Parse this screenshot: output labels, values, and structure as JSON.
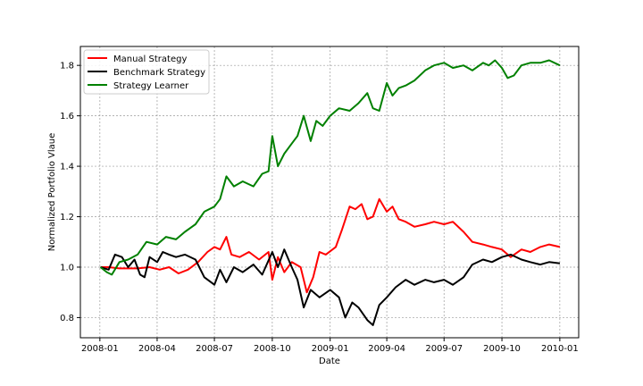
{
  "chart_data": {
    "type": "line",
    "xlabel": "Date",
    "ylabel": "Normalized Portfolio Vlaue",
    "x_ticks": [
      "2008-01",
      "2008-04",
      "2008-07",
      "2008-10",
      "2009-01",
      "2009-04",
      "2009-07",
      "2009-10",
      "2010-01"
    ],
    "y_ticks": [
      "0.8",
      "1.0",
      "1.2",
      "1.4",
      "1.6",
      "1.8"
    ],
    "xlim": [
      "2007-12-01",
      "2010-01-31"
    ],
    "ylim": [
      0.72,
      1.875
    ],
    "grid": true,
    "legend_position": "top-left",
    "series": [
      {
        "name": "Manual Strategy",
        "color": "#ff0000",
        "points": [
          [
            "2008-01-02",
            1.0
          ],
          [
            "2008-01-15",
            1.0
          ],
          [
            "2008-02-01",
            0.995
          ],
          [
            "2008-03-01",
            0.995
          ],
          [
            "2008-03-20",
            1.0
          ],
          [
            "2008-04-05",
            0.99
          ],
          [
            "2008-04-20",
            1.0
          ],
          [
            "2008-05-05",
            0.975
          ],
          [
            "2008-05-20",
            0.99
          ],
          [
            "2008-06-05",
            1.02
          ],
          [
            "2008-06-20",
            1.06
          ],
          [
            "2008-07-01",
            1.08
          ],
          [
            "2008-07-10",
            1.07
          ],
          [
            "2008-07-20",
            1.12
          ],
          [
            "2008-07-28",
            1.05
          ],
          [
            "2008-08-10",
            1.04
          ],
          [
            "2008-08-25",
            1.06
          ],
          [
            "2008-09-10",
            1.03
          ],
          [
            "2008-09-25",
            1.06
          ],
          [
            "2008-10-01",
            0.95
          ],
          [
            "2008-10-10",
            1.04
          ],
          [
            "2008-10-20",
            0.98
          ],
          [
            "2008-11-01",
            1.02
          ],
          [
            "2008-11-15",
            1.0
          ],
          [
            "2008-11-25",
            0.9
          ],
          [
            "2008-12-05",
            0.96
          ],
          [
            "2008-12-15",
            1.06
          ],
          [
            "2008-12-25",
            1.05
          ],
          [
            "2009-01-10",
            1.08
          ],
          [
            "2009-01-20",
            1.15
          ],
          [
            "2009-02-01",
            1.24
          ],
          [
            "2009-02-10",
            1.23
          ],
          [
            "2009-02-20",
            1.25
          ],
          [
            "2009-03-01",
            1.19
          ],
          [
            "2009-03-10",
            1.2
          ],
          [
            "2009-03-20",
            1.27
          ],
          [
            "2009-04-01",
            1.22
          ],
          [
            "2009-04-10",
            1.24
          ],
          [
            "2009-04-20",
            1.19
          ],
          [
            "2009-05-01",
            1.18
          ],
          [
            "2009-05-15",
            1.16
          ],
          [
            "2009-06-01",
            1.17
          ],
          [
            "2009-06-15",
            1.18
          ],
          [
            "2009-07-01",
            1.17
          ],
          [
            "2009-07-15",
            1.18
          ],
          [
            "2009-08-01",
            1.14
          ],
          [
            "2009-08-15",
            1.1
          ],
          [
            "2009-09-01",
            1.09
          ],
          [
            "2009-09-15",
            1.08
          ],
          [
            "2009-10-01",
            1.07
          ],
          [
            "2009-10-15",
            1.04
          ],
          [
            "2009-11-01",
            1.07
          ],
          [
            "2009-11-15",
            1.06
          ],
          [
            "2009-12-01",
            1.08
          ],
          [
            "2009-12-15",
            1.09
          ],
          [
            "2010-01-01",
            1.08
          ]
        ]
      },
      {
        "name": "Benchmark Strategy",
        "color": "#000000",
        "points": [
          [
            "2008-01-02",
            1.0
          ],
          [
            "2008-01-15",
            0.99
          ],
          [
            "2008-01-25",
            1.05
          ],
          [
            "2008-02-05",
            1.04
          ],
          [
            "2008-02-15",
            1.0
          ],
          [
            "2008-02-25",
            1.03
          ],
          [
            "2008-03-05",
            0.97
          ],
          [
            "2008-03-12",
            0.96
          ],
          [
            "2008-03-20",
            1.04
          ],
          [
            "2008-04-01",
            1.02
          ],
          [
            "2008-04-10",
            1.06
          ],
          [
            "2008-04-20",
            1.05
          ],
          [
            "2008-05-01",
            1.04
          ],
          [
            "2008-05-15",
            1.05
          ],
          [
            "2008-06-01",
            1.03
          ],
          [
            "2008-06-15",
            0.96
          ],
          [
            "2008-07-01",
            0.93
          ],
          [
            "2008-07-10",
            0.99
          ],
          [
            "2008-07-20",
            0.94
          ],
          [
            "2008-08-01",
            1.0
          ],
          [
            "2008-08-15",
            0.98
          ],
          [
            "2008-09-01",
            1.01
          ],
          [
            "2008-09-15",
            0.97
          ],
          [
            "2008-10-01",
            1.06
          ],
          [
            "2008-10-10",
            1.0
          ],
          [
            "2008-10-20",
            1.07
          ],
          [
            "2008-11-01",
            1.0
          ],
          [
            "2008-11-10",
            0.95
          ],
          [
            "2008-11-20",
            0.84
          ],
          [
            "2008-12-01",
            0.91
          ],
          [
            "2008-12-15",
            0.88
          ],
          [
            "2009-01-01",
            0.91
          ],
          [
            "2009-01-15",
            0.88
          ],
          [
            "2009-01-25",
            0.8
          ],
          [
            "2009-02-05",
            0.86
          ],
          [
            "2009-02-15",
            0.84
          ],
          [
            "2009-03-01",
            0.79
          ],
          [
            "2009-03-10",
            0.77
          ],
          [
            "2009-03-20",
            0.85
          ],
          [
            "2009-04-01",
            0.88
          ],
          [
            "2009-04-15",
            0.92
          ],
          [
            "2009-05-01",
            0.95
          ],
          [
            "2009-05-15",
            0.93
          ],
          [
            "2009-06-01",
            0.95
          ],
          [
            "2009-06-15",
            0.94
          ],
          [
            "2009-07-01",
            0.95
          ],
          [
            "2009-07-15",
            0.93
          ],
          [
            "2009-08-01",
            0.96
          ],
          [
            "2009-08-15",
            1.01
          ],
          [
            "2009-09-01",
            1.03
          ],
          [
            "2009-09-15",
            1.02
          ],
          [
            "2009-10-01",
            1.04
          ],
          [
            "2009-10-15",
            1.05
          ],
          [
            "2009-11-01",
            1.03
          ],
          [
            "2009-11-15",
            1.02
          ],
          [
            "2009-12-01",
            1.01
          ],
          [
            "2009-12-15",
            1.02
          ],
          [
            "2010-01-01",
            1.015
          ]
        ]
      },
      {
        "name": "Strategy Learner",
        "color": "#008000",
        "points": [
          [
            "2008-01-02",
            1.0
          ],
          [
            "2008-01-12",
            0.98
          ],
          [
            "2008-01-20",
            0.97
          ],
          [
            "2008-02-01",
            1.02
          ],
          [
            "2008-02-15",
            1.03
          ],
          [
            "2008-03-01",
            1.05
          ],
          [
            "2008-03-15",
            1.1
          ],
          [
            "2008-04-01",
            1.09
          ],
          [
            "2008-04-15",
            1.12
          ],
          [
            "2008-05-01",
            1.11
          ],
          [
            "2008-05-15",
            1.14
          ],
          [
            "2008-06-01",
            1.17
          ],
          [
            "2008-06-15",
            1.22
          ],
          [
            "2008-07-01",
            1.24
          ],
          [
            "2008-07-10",
            1.27
          ],
          [
            "2008-07-20",
            1.36
          ],
          [
            "2008-08-01",
            1.32
          ],
          [
            "2008-08-15",
            1.34
          ],
          [
            "2008-09-01",
            1.32
          ],
          [
            "2008-09-15",
            1.37
          ],
          [
            "2008-09-25",
            1.38
          ],
          [
            "2008-10-01",
            1.52
          ],
          [
            "2008-10-10",
            1.4
          ],
          [
            "2008-10-20",
            1.45
          ],
          [
            "2008-11-01",
            1.49
          ],
          [
            "2008-11-10",
            1.52
          ],
          [
            "2008-11-20",
            1.6
          ],
          [
            "2008-12-01",
            1.5
          ],
          [
            "2008-12-10",
            1.58
          ],
          [
            "2008-12-20",
            1.56
          ],
          [
            "2009-01-01",
            1.6
          ],
          [
            "2009-01-15",
            1.63
          ],
          [
            "2009-02-01",
            1.62
          ],
          [
            "2009-02-15",
            1.65
          ],
          [
            "2009-03-01",
            1.69
          ],
          [
            "2009-03-10",
            1.63
          ],
          [
            "2009-03-20",
            1.62
          ],
          [
            "2009-04-01",
            1.73
          ],
          [
            "2009-04-10",
            1.68
          ],
          [
            "2009-04-20",
            1.71
          ],
          [
            "2009-05-01",
            1.72
          ],
          [
            "2009-05-15",
            1.74
          ],
          [
            "2009-06-01",
            1.78
          ],
          [
            "2009-06-15",
            1.8
          ],
          [
            "2009-07-01",
            1.81
          ],
          [
            "2009-07-15",
            1.79
          ],
          [
            "2009-08-01",
            1.8
          ],
          [
            "2009-08-15",
            1.78
          ],
          [
            "2009-09-01",
            1.81
          ],
          [
            "2009-09-10",
            1.8
          ],
          [
            "2009-09-20",
            1.82
          ],
          [
            "2009-10-01",
            1.79
          ],
          [
            "2009-10-10",
            1.75
          ],
          [
            "2009-10-20",
            1.76
          ],
          [
            "2009-11-01",
            1.8
          ],
          [
            "2009-11-15",
            1.81
          ],
          [
            "2009-12-01",
            1.81
          ],
          [
            "2009-12-15",
            1.82
          ],
          [
            "2010-01-01",
            1.8
          ]
        ]
      }
    ]
  }
}
